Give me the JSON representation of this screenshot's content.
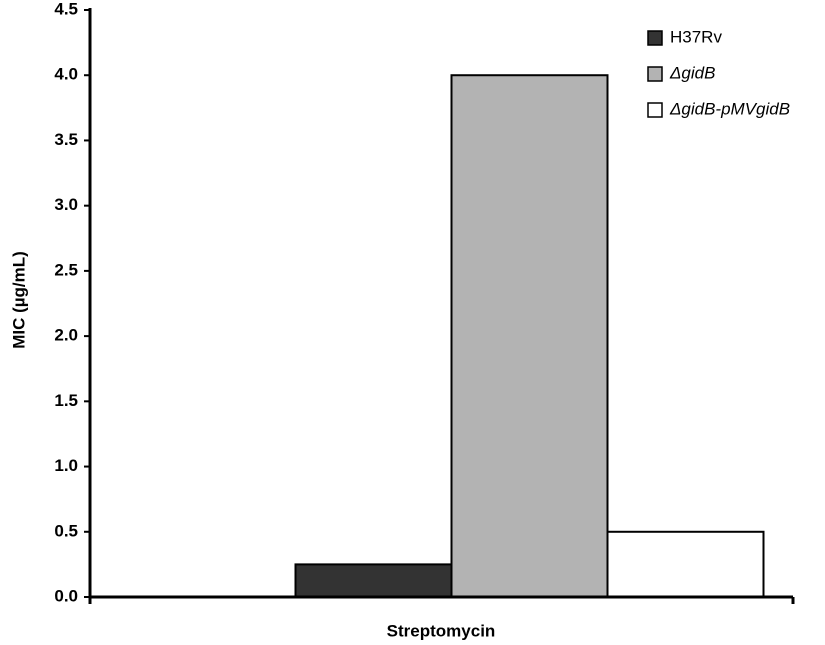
{
  "chart_data": {
    "type": "bar",
    "ylabel": "MIC (µg/mL)",
    "xlabel": "Streptomycin",
    "categories": [
      "Streptomycin"
    ],
    "series": [
      {
        "name": "H37Rv",
        "color": "#333333",
        "values": [
          0.25
        ]
      },
      {
        "name": "ΔgidB",
        "color": "#b3b3b3",
        "values": [
          4.0
        ]
      },
      {
        "name": "ΔgidB-pMVgidB",
        "color": "#ffffff",
        "values": [
          0.5
        ]
      }
    ],
    "ylim": [
      0,
      4.5
    ],
    "yticks": [
      {
        "value": 0,
        "label": "0.0"
      },
      0.5,
      {
        "value": 1,
        "label": "1.0"
      },
      1.5,
      {
        "value": 2,
        "label": "2.0"
      },
      2.5,
      {
        "value": 3,
        "label": "3.0"
      },
      3.5,
      {
        "value": 4,
        "label": "4.0"
      },
      4.5
    ],
    "legend": "upper right",
    "grid": false
  }
}
